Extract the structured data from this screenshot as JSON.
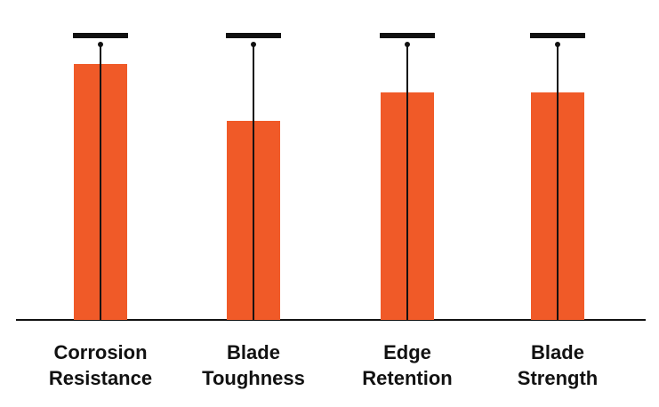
{
  "chart_data": {
    "type": "bar",
    "categories": [
      [
        "Corrosion",
        "Resistance"
      ],
      [
        "Blade",
        "Toughness"
      ],
      [
        "Edge",
        "Retention"
      ],
      [
        "Blade",
        "Strength"
      ]
    ],
    "values": [
      9,
      7,
      8,
      8
    ],
    "max_marker": 10,
    "ylim": [
      0,
      10
    ],
    "title": "",
    "xlabel": "",
    "ylabel": "",
    "grid": false,
    "colors": {
      "bar": "#f05a28",
      "line": "#111111",
      "background": "#ffffff"
    }
  }
}
